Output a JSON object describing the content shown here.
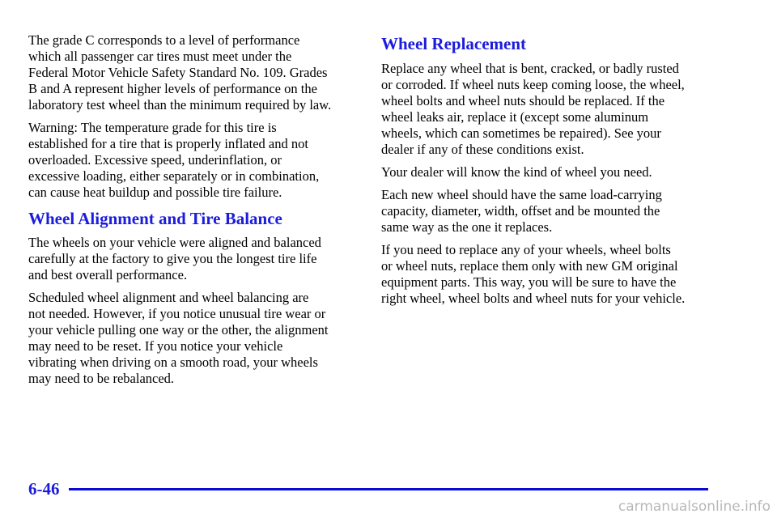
{
  "left": {
    "blocks": [
      {
        "type": "paragraph",
        "lines": [
          "The grade C corresponds to a level of performance",
          "which all passenger car tires must meet under the",
          "Federal Motor Vehicle Safety Standard No. 109. Grades",
          "B and A represent higher levels of performance on the",
          "laboratory test wheel than the minimum required by law."
        ]
      },
      {
        "type": "paragraph",
        "lines": [
          "Warning: The temperature grade for this tire is",
          "established for a tire that is properly inflated and not",
          "overloaded. Excessive speed, underinflation, or",
          "excessive loading, either separately or in combination,",
          "can cause heat buildup and possible tire failure."
        ]
      },
      {
        "type": "heading",
        "text": "Wheel Alignment and Tire Balance"
      },
      {
        "type": "paragraph",
        "lines": [
          "The wheels on your vehicle were aligned and balanced",
          "carefully at the factory to give you the longest tire life",
          "and best overall performance."
        ]
      },
      {
        "type": "paragraph",
        "lines": [
          "Scheduled wheel alignment and wheel balancing are",
          "not needed. However, if you notice unusual tire wear or",
          "your vehicle pulling one way or the other, the alignment",
          "may need to be reset. If you notice your vehicle",
          "vibrating when driving on a smooth road, your wheels",
          "may need to be rebalanced."
        ]
      }
    ]
  },
  "right": {
    "blocks": [
      {
        "type": "heading",
        "text": "Wheel Replacement"
      },
      {
        "type": "paragraph",
        "lines": [
          "Replace any wheel that is bent, cracked, or badly rusted",
          "or corroded. If wheel nuts keep coming loose, the wheel,",
          "wheel bolts and wheel nuts should be replaced. If the",
          "wheel leaks air, replace it (except some aluminum",
          "wheels, which can sometimes be repaired). See your",
          "dealer if any of these conditions exist."
        ]
      },
      {
        "type": "paragraph",
        "lines": [
          "Your dealer will know the kind of wheel you need."
        ]
      },
      {
        "type": "paragraph",
        "lines": [
          "Each new wheel should have the same load-carrying",
          "capacity, diameter, width, offset and be mounted the",
          "same way as the one it replaces."
        ]
      },
      {
        "type": "paragraph",
        "lines": [
          "If you need to replace any of your wheels, wheel bolts",
          "or wheel nuts, replace them only with new GM original",
          "equipment parts. This way, you will be sure to have the",
          "right wheel, wheel bolts and wheel nuts for your vehicle."
        ]
      }
    ]
  },
  "footer": {
    "page_number": "6-46",
    "watermark": "carmanualsonline.info"
  }
}
